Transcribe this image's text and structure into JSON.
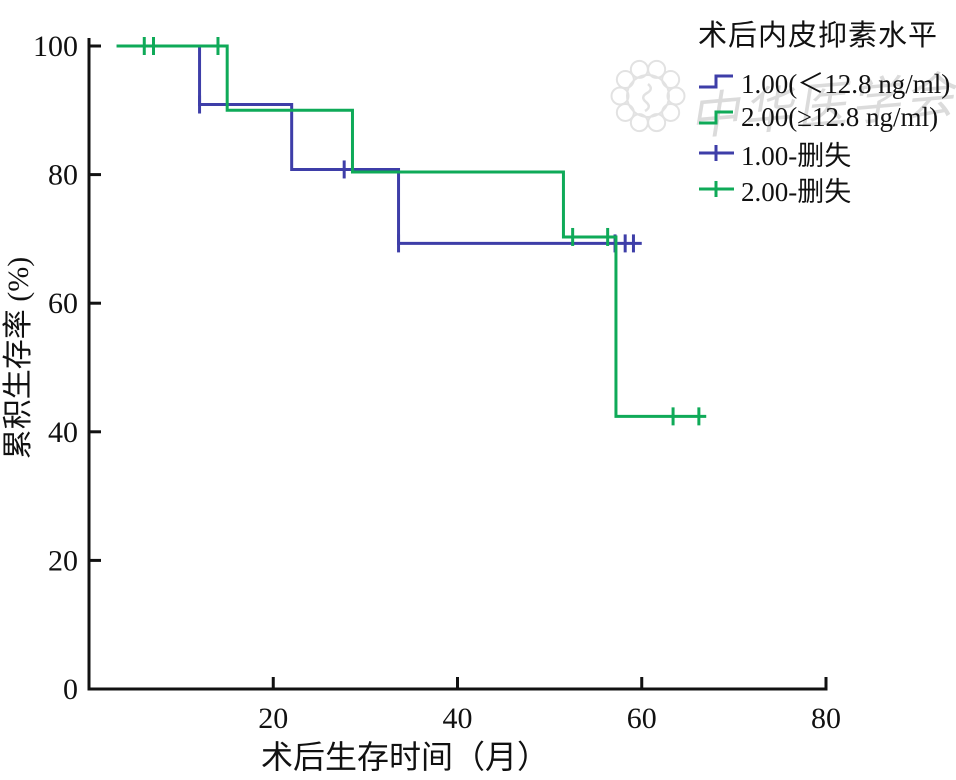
{
  "figure": {
    "background": "#ffffff"
  },
  "axes": {
    "x": {
      "label": "术后生存时间（月）",
      "ticks": [
        20,
        40,
        60,
        80
      ],
      "range": [
        0,
        80
      ]
    },
    "y": {
      "label": "累积生存率 (%)",
      "ticks": [
        0,
        20,
        40,
        60,
        80,
        100
      ],
      "range": [
        0,
        100
      ]
    }
  },
  "legend": {
    "title": "术后内皮抑素水平",
    "items": [
      {
        "label": "1.00(＜12.8 ng/ml)",
        "marker": "step-line",
        "color": "#3e3ea8"
      },
      {
        "label": "2.00(≥12.8 ng/ml)",
        "marker": "step-line",
        "color": "#0faa58"
      },
      {
        "label": "1.00-删失",
        "marker": "plus",
        "color": "#3e3ea8"
      },
      {
        "label": "2.00-删失",
        "marker": "plus",
        "color": "#0faa58"
      }
    ]
  },
  "watermark": {
    "text": "中华医学会"
  },
  "chart_data": {
    "type": "line",
    "subtype": "kaplan-meier-step",
    "title": "",
    "xlabel": "术后生存时间（月）",
    "ylabel": "累积生存率 (%)",
    "xlim": [
      0,
      80
    ],
    "ylim": [
      0,
      100
    ],
    "grid": false,
    "legend_position": "top-right",
    "legend_title": "术后内皮抑素水平",
    "series": [
      {
        "name": "1.00(＜12.8 ng/ml)",
        "color": "#3e3ea8",
        "survival_levels_pct": [
          100,
          90.9,
          80.8,
          69.3
        ],
        "event_times_months": [
          12,
          22,
          34
        ],
        "points": [
          [
            3,
            100
          ],
          [
            12,
            100
          ],
          [
            12,
            90.9
          ],
          [
            22,
            90.9
          ],
          [
            22,
            80.8
          ],
          [
            33.6,
            80.8
          ],
          [
            33.6,
            69.3
          ],
          [
            60,
            69.3
          ]
        ],
        "censored": [
          [
            12,
            90.9
          ],
          [
            27.7,
            80.8
          ],
          [
            33.6,
            69.3
          ],
          [
            57.1,
            69.3
          ],
          [
            58.2,
            69.3
          ],
          [
            59.1,
            69.3
          ]
        ]
      },
      {
        "name": "2.00(≥12.8 ng/ml)",
        "color": "#0faa58",
        "survival_levels_pct": [
          100,
          90,
          80.4,
          70.3,
          42.4
        ],
        "event_times_months": [
          15,
          29,
          51.5,
          57.2
        ],
        "points": [
          [
            3,
            100
          ],
          [
            15,
            100
          ],
          [
            15,
            90
          ],
          [
            28.6,
            90
          ],
          [
            28.6,
            80.4
          ],
          [
            51.5,
            80.4
          ],
          [
            51.5,
            70.3
          ],
          [
            57.2,
            70.3
          ],
          [
            57.2,
            42.4
          ],
          [
            67,
            42.4
          ]
        ],
        "censored": [
          [
            6,
            100
          ],
          [
            7,
            100
          ],
          [
            14,
            100
          ],
          [
            52.5,
            70.3
          ],
          [
            56.3,
            70.3
          ],
          [
            63.4,
            42.4
          ],
          [
            66.2,
            42.4
          ]
        ]
      }
    ]
  }
}
